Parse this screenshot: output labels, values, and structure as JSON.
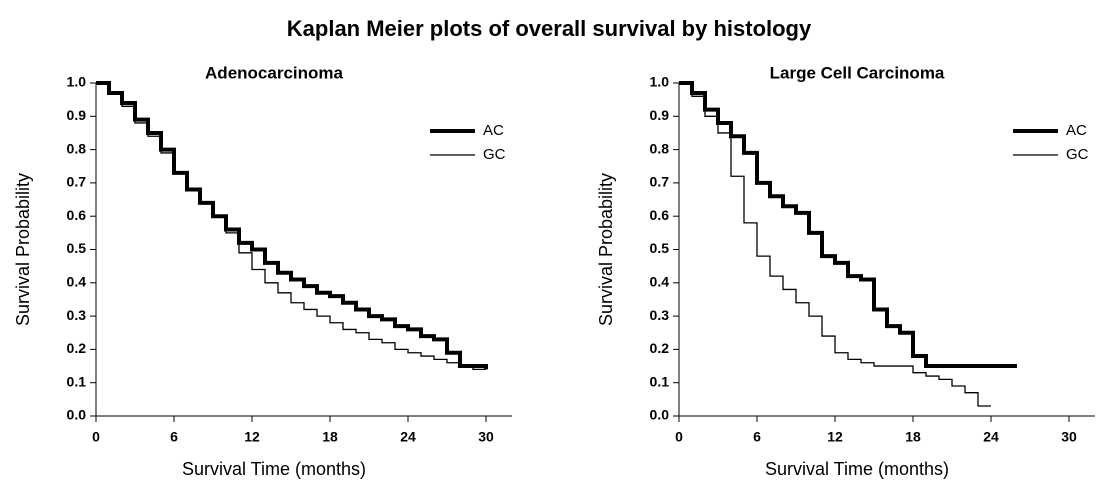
{
  "title": "Kaplan Meier plots of overall survival by histology",
  "chart_data": [
    {
      "type": "line",
      "step": "post",
      "title": "Adenocarcinoma",
      "x_label": "Survival Time (months)",
      "y_label": "Survival Probability",
      "x": [
        0,
        1,
        2,
        3,
        4,
        5,
        6,
        7,
        8,
        9,
        10,
        11,
        12,
        13,
        14,
        15,
        16,
        17,
        18,
        19,
        20,
        21,
        22,
        23,
        24,
        25,
        26,
        27,
        28,
        29,
        30
      ],
      "series": [
        {
          "name": "AC",
          "color": "#000000",
          "line_width": 4,
          "values": [
            1.0,
            0.97,
            0.94,
            0.89,
            0.85,
            0.8,
            0.73,
            0.68,
            0.64,
            0.6,
            0.56,
            0.52,
            0.5,
            0.46,
            0.43,
            0.41,
            0.39,
            0.37,
            0.36,
            0.34,
            0.32,
            0.3,
            0.29,
            0.27,
            0.26,
            0.24,
            0.23,
            0.19,
            0.15,
            0.15,
            0.14
          ]
        },
        {
          "name": "GC",
          "color": "#000000",
          "line_width": 1.3,
          "values": [
            1.0,
            0.97,
            0.93,
            0.88,
            0.84,
            0.79,
            0.73,
            0.68,
            0.64,
            0.6,
            0.55,
            0.49,
            0.44,
            0.4,
            0.37,
            0.34,
            0.32,
            0.3,
            0.28,
            0.26,
            0.25,
            0.23,
            0.22,
            0.2,
            0.19,
            0.18,
            0.17,
            0.16,
            0.15,
            0.14,
            0.14
          ]
        }
      ],
      "xlim": [
        0,
        32
      ],
      "xticks": [
        0,
        6,
        12,
        18,
        24,
        30
      ],
      "ylim": [
        0,
        1
      ],
      "yticks": [
        {
          "value": 0,
          "label": "0.0"
        },
        0.1,
        0.2,
        0.3,
        0.4,
        0.5,
        0.6,
        0.7,
        0.8,
        0.9,
        {
          "value": 1,
          "label": "1.0"
        }
      ],
      "legend": "upper right",
      "grid": false
    },
    {
      "type": "line",
      "step": "post",
      "title": "Large Cell Carcinoma",
      "x_label": "Survival Time (months)",
      "y_label": "Survival Probability",
      "x": [
        0,
        1,
        2,
        3,
        4,
        5,
        6,
        7,
        8,
        9,
        10,
        11,
        12,
        13,
        14,
        15,
        16,
        17,
        18,
        19,
        20,
        21,
        22,
        23,
        24,
        25,
        26
      ],
      "series": [
        {
          "name": "AC",
          "color": "#000000",
          "line_width": 4,
          "values": [
            1.0,
            0.97,
            0.92,
            0.88,
            0.84,
            0.79,
            0.7,
            0.66,
            0.63,
            0.61,
            0.55,
            0.48,
            0.46,
            0.42,
            0.41,
            0.32,
            0.27,
            0.25,
            0.18,
            0.15,
            0.15,
            0.15,
            0.15,
            0.15,
            0.15,
            0.15,
            0.15
          ]
        },
        {
          "name": "GC",
          "color": "#000000",
          "line_width": 1.3,
          "values": [
            1.0,
            0.96,
            0.9,
            0.85,
            0.72,
            0.58,
            0.48,
            0.42,
            0.38,
            0.34,
            0.3,
            0.24,
            0.19,
            0.17,
            0.16,
            0.15,
            0.15,
            0.15,
            0.13,
            0.12,
            0.11,
            0.09,
            0.07,
            0.03,
            0.03,
            null,
            null
          ]
        }
      ],
      "xlim": [
        0,
        32
      ],
      "xticks": [
        0,
        6,
        12,
        18,
        24,
        30
      ],
      "ylim": [
        0,
        1
      ],
      "yticks": [
        {
          "value": 0,
          "label": "0.0"
        },
        0.1,
        0.2,
        0.3,
        0.4,
        0.5,
        0.6,
        0.7,
        0.8,
        0.9,
        {
          "value": 1,
          "label": "1.0"
        }
      ],
      "legend": "upper right",
      "grid": false
    }
  ]
}
